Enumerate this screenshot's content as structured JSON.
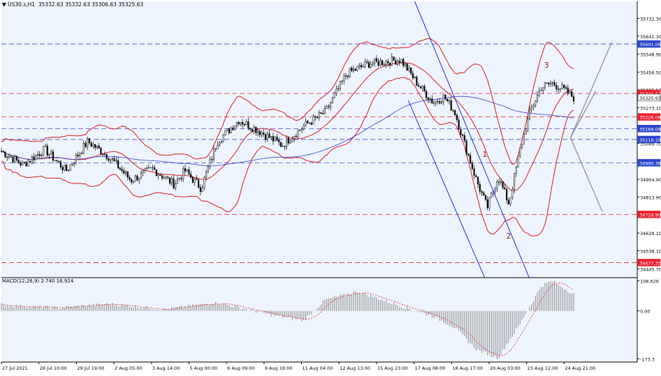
{
  "chart_data": {
    "type": "candlestick",
    "symbol": "US30.s,H1",
    "ohlc_header": "35332.63 35332.63 35306.63 35325.63",
    "main": {
      "ylim": [
        34400,
        35820
      ],
      "y_ticks": [
        35732.3,
        35641.3,
        35548.9,
        35456.5,
        35365.5,
        35273.1,
        35180.7,
        35089.7,
        34904.9,
        34813.9,
        34629.1,
        34538.1,
        34445.7
      ],
      "levels": [
        {
          "label": "35601.06",
          "value": 35601.06,
          "kind": "blue"
        },
        {
          "label": "35346.61",
          "value": 35346.61,
          "kind": "red"
        },
        {
          "label": "35325.63",
          "value": 35325.63,
          "kind": "price"
        },
        {
          "label": "35226.08",
          "value": 35226.08,
          "kind": "red"
        },
        {
          "label": "35166.08",
          "value": 35166.08,
          "kind": "blue"
        },
        {
          "label": "35110.19",
          "value": 35110.19,
          "kind": "blue"
        },
        {
          "label": "34990.38",
          "value": 34990.38,
          "kind": "blue"
        },
        {
          "label": "34724.90",
          "value": 34724.9,
          "kind": "red"
        },
        {
          "label": "34477.31",
          "value": 34477.31,
          "kind": "red"
        }
      ],
      "wave_labels": [
        {
          "text": "1",
          "x": 0.445,
          "y": 35020
        },
        {
          "text": "2",
          "x": 0.467,
          "y": 34600
        },
        {
          "text": "3",
          "x": 0.502,
          "y": 35480
        }
      ],
      "series_shape": [
        [
          0,
          35050
        ],
        [
          0.02,
          34980
        ],
        [
          0.04,
          35060
        ],
        [
          0.06,
          34950
        ],
        [
          0.08,
          35100
        ],
        [
          0.1,
          35020
        ],
        [
          0.12,
          34900
        ],
        [
          0.14,
          34960
        ],
        [
          0.16,
          34880
        ],
        [
          0.17,
          34950
        ],
        [
          0.185,
          34860
        ],
        [
          0.2,
          35100
        ],
        [
          0.22,
          35210
        ],
        [
          0.24,
          35150
        ],
        [
          0.26,
          35080
        ],
        [
          0.28,
          35180
        ],
        [
          0.3,
          35250
        ],
        [
          0.32,
          35450
        ],
        [
          0.34,
          35500
        ],
        [
          0.355,
          35510
        ],
        [
          0.37,
          35520
        ],
        [
          0.385,
          35400
        ],
        [
          0.4,
          35300
        ],
        [
          0.41,
          35330
        ],
        [
          0.42,
          35250
        ],
        [
          0.43,
          35070
        ],
        [
          0.44,
          34900
        ],
        [
          0.45,
          34760
        ],
        [
          0.46,
          34920
        ],
        [
          0.47,
          34780
        ],
        [
          0.48,
          35050
        ],
        [
          0.49,
          35260
        ],
        [
          0.5,
          35380
        ],
        [
          0.51,
          35400
        ],
        [
          0.52,
          35370
        ],
        [
          0.53,
          35325
        ]
      ]
    },
    "macd": {
      "label": "MACD(12,26,9) 2.740 16.924",
      "ylim": [
        -185,
        120
      ],
      "y_ticks": [
        108.626,
        0.0,
        -173.3
      ],
      "histogram_shape": [
        [
          0,
          20
        ],
        [
          0.05,
          10
        ],
        [
          0.1,
          25
        ],
        [
          0.15,
          5
        ],
        [
          0.2,
          30
        ],
        [
          0.25,
          -15
        ],
        [
          0.28,
          -35
        ],
        [
          0.3,
          40
        ],
        [
          0.33,
          70
        ],
        [
          0.36,
          30
        ],
        [
          0.4,
          -20
        ],
        [
          0.42,
          -60
        ],
        [
          0.44,
          -140
        ],
        [
          0.46,
          -170
        ],
        [
          0.48,
          -50
        ],
        [
          0.5,
          90
        ],
        [
          0.51,
          108
        ],
        [
          0.53,
          60
        ]
      ]
    },
    "x_tick_labels": [
      "27 Jul 2021",
      "28 Jul 10:00",
      "29 Jul 19:00",
      "2 Aug 05:00",
      "3 Aug 14:00",
      "5 Aug 00:00",
      "6 Aug 09:00",
      "9 Aug 18:00",
      "11 Aug 04:00",
      "12 Aug 13:00",
      "15 Aug 23:00",
      "17 Aug 08:00",
      "18 Aug 17:00",
      "20 Aug 03:00",
      "23 Aug 12:00",
      "24 Aug 21:00"
    ],
    "colors": {
      "background": "#eef4fd",
      "bollinger": "#e0151b",
      "moving_average": "#2e3cd8",
      "channel": "#1b2ddc",
      "red_level": "#d72828",
      "blue_level": "#3a4ec8",
      "label_red": "#e8202a",
      "label_blue": "#2a44cc",
      "arrow": "#8a8a8a"
    }
  }
}
